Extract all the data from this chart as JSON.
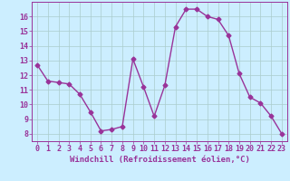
{
  "x": [
    0,
    1,
    2,
    3,
    4,
    5,
    6,
    7,
    8,
    9,
    10,
    11,
    12,
    13,
    14,
    15,
    16,
    17,
    18,
    19,
    20,
    21,
    22,
    23
  ],
  "y": [
    12.7,
    11.6,
    11.5,
    11.4,
    10.7,
    9.5,
    8.2,
    8.3,
    8.5,
    13.1,
    11.2,
    9.2,
    11.3,
    15.3,
    16.5,
    16.5,
    16.0,
    15.8,
    14.7,
    12.1,
    10.5,
    10.1,
    9.2,
    8.0
  ],
  "line_color": "#993399",
  "marker": "D",
  "marker_size": 2.5,
  "background_color": "#cceeff",
  "grid_color": "#aacccc",
  "xlabel": "Windchill (Refroidissement éolien,°C)",
  "xlabel_fontsize": 6.5,
  "ylim": [
    7.5,
    17.0
  ],
  "xlim": [
    -0.5,
    23.5
  ],
  "yticks": [
    8,
    9,
    10,
    11,
    12,
    13,
    14,
    15,
    16
  ],
  "xticks": [
    0,
    1,
    2,
    3,
    4,
    5,
    6,
    7,
    8,
    9,
    10,
    11,
    12,
    13,
    14,
    15,
    16,
    17,
    18,
    19,
    20,
    21,
    22,
    23
  ],
  "tick_fontsize": 6,
  "tick_color": "#993399",
  "axis_color": "#993399",
  "linewidth": 1.0
}
